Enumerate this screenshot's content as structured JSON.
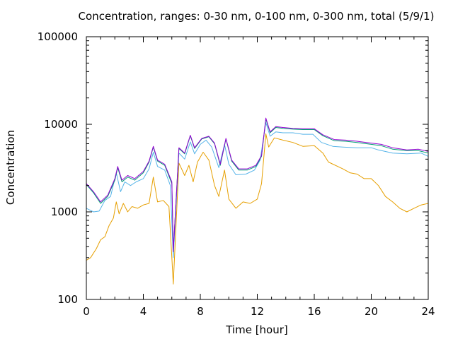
{
  "chart_data": {
    "type": "line",
    "title": "Concentration, ranges: 0-30 nm, 0-100 nm, 0-300 nm, total (5/9/1)",
    "xlabel": "Time [hour]",
    "ylabel": "Concentration",
    "xlim": [
      0,
      24
    ],
    "ylim": [
      100,
      100000
    ],
    "yscale": "log",
    "grid": false,
    "x_ticks": [
      0,
      4,
      8,
      12,
      16,
      20,
      24
    ],
    "x_tick_labels": [
      "0",
      "4",
      "8",
      "12",
      "16",
      "20",
      "24"
    ],
    "y_ticks": [
      100,
      1000,
      10000,
      100000
    ],
    "y_tick_labels": [
      "100",
      "1000",
      "10000",
      "100000"
    ],
    "series": [
      {
        "color": "#e69f00",
        "points": [
          [
            0,
            280
          ],
          [
            0.3,
            300
          ],
          [
            0.7,
            380
          ],
          [
            1.0,
            480
          ],
          [
            1.3,
            520
          ],
          [
            1.6,
            700
          ],
          [
            1.9,
            850
          ],
          [
            2.1,
            1300
          ],
          [
            2.3,
            950
          ],
          [
            2.6,
            1250
          ],
          [
            2.9,
            1000
          ],
          [
            3.2,
            1150
          ],
          [
            3.6,
            1100
          ],
          [
            4.0,
            1200
          ],
          [
            4.4,
            1250
          ],
          [
            4.7,
            2500
          ],
          [
            5.0,
            1300
          ],
          [
            5.4,
            1350
          ],
          [
            5.8,
            1150
          ],
          [
            6.0,
            300
          ],
          [
            6.1,
            150
          ],
          [
            6.5,
            3600
          ],
          [
            6.9,
            2600
          ],
          [
            7.2,
            3400
          ],
          [
            7.5,
            2200
          ],
          [
            7.8,
            3700
          ],
          [
            8.2,
            4800
          ],
          [
            8.6,
            3900
          ],
          [
            9.0,
            2000
          ],
          [
            9.3,
            1500
          ],
          [
            9.7,
            3000
          ],
          [
            10.0,
            1400
          ],
          [
            10.5,
            1100
          ],
          [
            11.0,
            1300
          ],
          [
            11.5,
            1250
          ],
          [
            12.0,
            1400
          ],
          [
            12.3,
            2100
          ],
          [
            12.6,
            7800
          ],
          [
            12.8,
            5500
          ],
          [
            13.2,
            7000
          ],
          [
            13.8,
            6600
          ],
          [
            14.5,
            6200
          ],
          [
            15.2,
            5600
          ],
          [
            16.0,
            5700
          ],
          [
            16.6,
            4700
          ],
          [
            17.0,
            3700
          ],
          [
            18.0,
            3100
          ],
          [
            18.5,
            2800
          ],
          [
            19.0,
            2700
          ],
          [
            19.5,
            2400
          ],
          [
            20.0,
            2400
          ],
          [
            20.5,
            2000
          ],
          [
            21.0,
            1500
          ],
          [
            21.5,
            1300
          ],
          [
            22.0,
            1100
          ],
          [
            22.5,
            1000
          ],
          [
            23.0,
            1100
          ],
          [
            23.5,
            1200
          ],
          [
            24.0,
            1250
          ]
        ]
      },
      {
        "color": "#56b4e9",
        "points": [
          [
            0,
            1100
          ],
          [
            0.5,
            1000
          ],
          [
            0.9,
            1020
          ],
          [
            1.3,
            1350
          ],
          [
            1.7,
            1500
          ],
          [
            2.1,
            2800
          ],
          [
            2.4,
            1700
          ],
          [
            2.7,
            2200
          ],
          [
            3.1,
            2000
          ],
          [
            3.5,
            2200
          ],
          [
            4.0,
            2400
          ],
          [
            4.4,
            3100
          ],
          [
            4.7,
            4800
          ],
          [
            5.0,
            3300
          ],
          [
            5.5,
            3000
          ],
          [
            5.9,
            2000
          ],
          [
            6.1,
            300
          ],
          [
            6.5,
            4700
          ],
          [
            6.9,
            4000
          ],
          [
            7.3,
            6300
          ],
          [
            7.6,
            4600
          ],
          [
            8.0,
            5900
          ],
          [
            8.4,
            6600
          ],
          [
            8.8,
            5500
          ],
          [
            9.3,
            3200
          ],
          [
            9.7,
            5900
          ],
          [
            10.0,
            3500
          ],
          [
            10.5,
            2650
          ],
          [
            11.2,
            2700
          ],
          [
            11.8,
            3000
          ],
          [
            12.2,
            3900
          ],
          [
            12.6,
            10500
          ],
          [
            12.9,
            7300
          ],
          [
            13.3,
            8200
          ],
          [
            13.8,
            8000
          ],
          [
            14.5,
            8000
          ],
          [
            15.2,
            7700
          ],
          [
            15.9,
            7700
          ],
          [
            16.5,
            6200
          ],
          [
            17.3,
            5600
          ],
          [
            18.0,
            5500
          ],
          [
            19.0,
            5400
          ],
          [
            20.0,
            5400
          ],
          [
            20.5,
            5100
          ],
          [
            21.5,
            4700
          ],
          [
            22.5,
            4600
          ],
          [
            23.5,
            4700
          ],
          [
            24.0,
            4300
          ]
        ]
      },
      {
        "color": "#009e73",
        "points": [
          [
            0,
            2050
          ],
          [
            0.5,
            1650
          ],
          [
            1.0,
            1250
          ],
          [
            1.5,
            1500
          ],
          [
            2.0,
            2300
          ],
          [
            2.2,
            3200
          ],
          [
            2.5,
            2200
          ],
          [
            2.9,
            2500
          ],
          [
            3.4,
            2300
          ],
          [
            4.0,
            2800
          ],
          [
            4.4,
            3700
          ],
          [
            4.7,
            5500
          ],
          [
            5.0,
            3800
          ],
          [
            5.5,
            3400
          ],
          [
            6.0,
            2100
          ],
          [
            6.1,
            350
          ],
          [
            6.5,
            5300
          ],
          [
            6.9,
            4600
          ],
          [
            7.3,
            7400
          ],
          [
            7.6,
            5300
          ],
          [
            8.1,
            6800
          ],
          [
            8.6,
            7200
          ],
          [
            9.0,
            6000
          ],
          [
            9.4,
            3400
          ],
          [
            9.8,
            6800
          ],
          [
            10.2,
            3800
          ],
          [
            10.7,
            3000
          ],
          [
            11.3,
            3000
          ],
          [
            11.9,
            3300
          ],
          [
            12.3,
            4300
          ],
          [
            12.6,
            11500
          ],
          [
            12.9,
            8000
          ],
          [
            13.3,
            9200
          ],
          [
            13.8,
            9000
          ],
          [
            14.5,
            8800
          ],
          [
            15.2,
            8700
          ],
          [
            16.0,
            8700
          ],
          [
            16.6,
            7400
          ],
          [
            17.4,
            6500
          ],
          [
            18.2,
            6400
          ],
          [
            19.0,
            6200
          ],
          [
            20.0,
            5900
          ],
          [
            20.7,
            5700
          ],
          [
            21.5,
            5200
          ],
          [
            22.5,
            5000
          ],
          [
            23.3,
            5000
          ],
          [
            24.0,
            4700
          ]
        ]
      },
      {
        "color": "#9400d3",
        "points": [
          [
            0,
            2100
          ],
          [
            0.5,
            1700
          ],
          [
            1.0,
            1300
          ],
          [
            1.5,
            1550
          ],
          [
            2.0,
            2400
          ],
          [
            2.2,
            3300
          ],
          [
            2.5,
            2300
          ],
          [
            2.9,
            2600
          ],
          [
            3.4,
            2400
          ],
          [
            4.0,
            2900
          ],
          [
            4.4,
            3800
          ],
          [
            4.7,
            5600
          ],
          [
            5.0,
            3900
          ],
          [
            5.5,
            3500
          ],
          [
            6.0,
            2200
          ],
          [
            6.1,
            350
          ],
          [
            6.5,
            5400
          ],
          [
            6.9,
            4700
          ],
          [
            7.3,
            7500
          ],
          [
            7.6,
            5400
          ],
          [
            8.1,
            6900
          ],
          [
            8.6,
            7300
          ],
          [
            9.0,
            6100
          ],
          [
            9.4,
            3500
          ],
          [
            9.8,
            6900
          ],
          [
            10.2,
            3900
          ],
          [
            10.7,
            3100
          ],
          [
            11.3,
            3100
          ],
          [
            11.9,
            3400
          ],
          [
            12.3,
            4400
          ],
          [
            12.6,
            11800
          ],
          [
            12.9,
            8200
          ],
          [
            13.3,
            9400
          ],
          [
            13.8,
            9200
          ],
          [
            14.5,
            9000
          ],
          [
            15.2,
            8900
          ],
          [
            16.0,
            8900
          ],
          [
            16.6,
            7600
          ],
          [
            17.4,
            6700
          ],
          [
            18.2,
            6600
          ],
          [
            19.0,
            6400
          ],
          [
            20.0,
            6100
          ],
          [
            20.7,
            5900
          ],
          [
            21.5,
            5400
          ],
          [
            22.5,
            5100
          ],
          [
            23.3,
            5200
          ],
          [
            24.0,
            4900
          ]
        ]
      }
    ]
  }
}
